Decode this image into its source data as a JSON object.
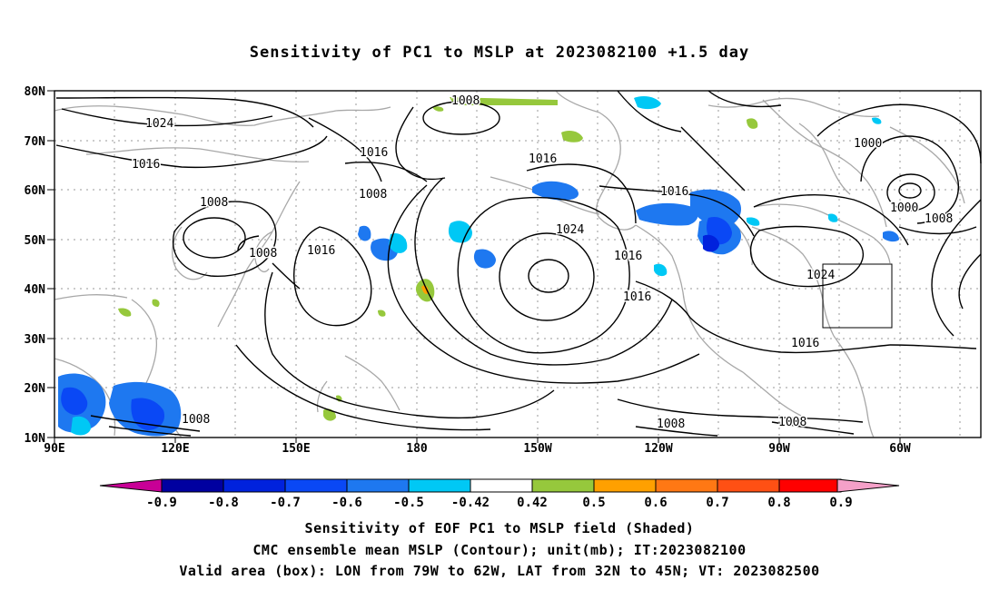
{
  "title": "Sensitivity of PC1 to MSLP at 2023082100 +1.5 day",
  "lat_labels": [
    "80N",
    "70N",
    "60N",
    "50N",
    "40N",
    "30N",
    "20N",
    "10N"
  ],
  "lon_labels": [
    "90E",
    "120E",
    "150E",
    "180",
    "150W",
    "120W",
    "90W",
    "60W"
  ],
  "contour_labels": [
    "1008",
    "1024",
    "1016",
    "1008",
    "1016",
    "1008",
    "1008",
    "1016",
    "1016",
    "1024",
    "1016",
    "1016",
    "1016",
    "1000",
    "1000",
    "1008",
    "1024",
    "1016",
    "1008",
    "1008",
    "1008"
  ],
  "colorbar": {
    "labels": [
      "-0.9",
      "-0.8",
      "-0.7",
      "-0.6",
      "-0.5",
      "-0.42",
      "0.42",
      "0.5",
      "0.6",
      "0.7",
      "0.8",
      "0.9"
    ],
    "colors": [
      "#0000a0",
      "#0022dd",
      "#0a48f5",
      "#1e78f0",
      "#00c8f5",
      "#ffffff",
      "#96c83c",
      "#ffa000",
      "#ff7814",
      "#ff5014",
      "#ff0000"
    ],
    "low_cap_color": "#c80096",
    "high_cap_color": "#f5a0c8"
  },
  "captions": [
    "Sensitivity of EOF PC1 to MSLP field (Shaded)",
    "CMC ensemble mean MSLP (Contour); unit(mb); IT:2023082100",
    "Valid area (box): LON from 79W to 62W, LAT from 32N to 45N; VT: 2023082500"
  ],
  "valid_box": {
    "lon": [
      "79W",
      "62W"
    ],
    "lat": [
      "32N",
      "45N"
    ]
  }
}
